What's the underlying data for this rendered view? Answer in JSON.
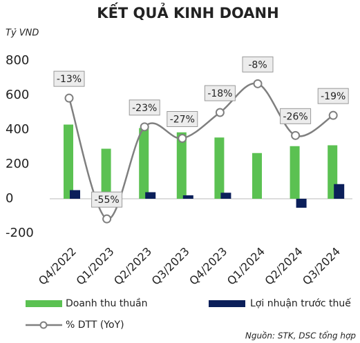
{
  "chart_data": {
    "type": "bar_line",
    "title": "KẾT QUẢ KINH DOANH",
    "y_unit": "Tỷ VND",
    "source": "Nguồn: STK, DSC tổng hợp",
    "categories": [
      "Q4/2022",
      "Q1/2023",
      "Q2/2023",
      "Q3/2023",
      "Q4/2023",
      "Q1/2024",
      "Q2/2024",
      "Q3/2024"
    ],
    "ylim": [
      -200,
      800
    ],
    "yticks": [
      -200,
      0,
      200,
      400,
      600,
      800
    ],
    "y2lim": [
      -60,
      0
    ],
    "series": [
      {
        "name": "Doanh thu thuần",
        "color": "#5bc152",
        "values": [
          430,
          290,
          410,
          385,
          355,
          265,
          305,
          310
        ]
      },
      {
        "name": "Lợi nhuận trước thuế",
        "color": "#0b1f5a",
        "values": [
          50,
          0,
          38,
          20,
          35,
          0,
          -52,
          85
        ]
      },
      {
        "name": "% DTT (YoY)",
        "color": "#7f7f7f",
        "axis": "y2",
        "values": [
          -13,
          -55,
          -23,
          -27,
          -18,
          -8,
          -26,
          -19
        ],
        "value_labels": [
          "-13%",
          "-55%",
          "-23%",
          "-27%",
          "-18%",
          "-8%",
          "-26%",
          "-19%"
        ]
      }
    ]
  }
}
